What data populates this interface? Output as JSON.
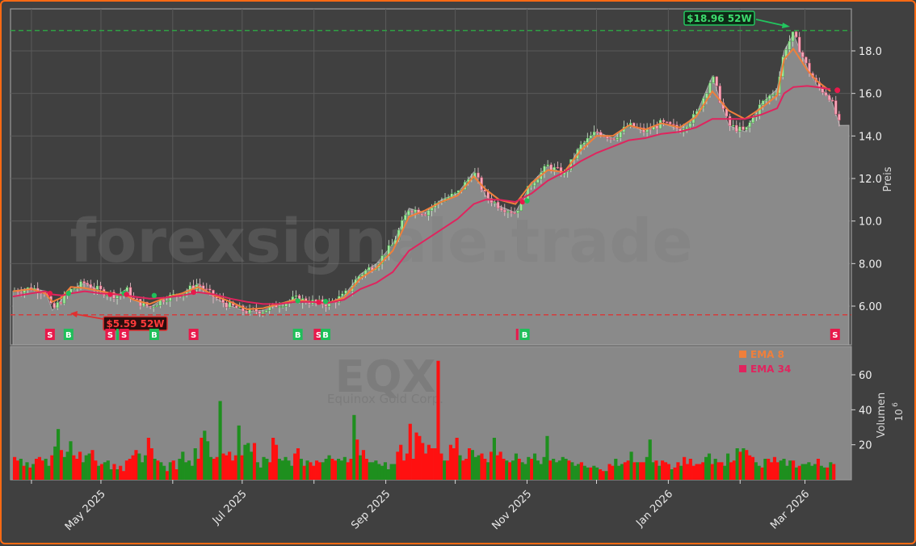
{
  "chart_data": [
    {
      "type": "candlestick",
      "panel": "price",
      "title": "",
      "ylabel": "Preis",
      "ylim": [
        4.8,
        19.9
      ],
      "yticks": [
        6.0,
        8.0,
        10.0,
        12.0,
        14.0,
        16.0,
        18.0
      ],
      "ytick_labels": [
        "6.00",
        "8.00",
        "10.0",
        "12.0",
        "14.0",
        "16.0",
        "18.0"
      ],
      "grid": true,
      "x_start": "2025-03-24",
      "x_end": "2026-03-20",
      "close_approx": [
        [
          "2025-03-24",
          6.7
        ],
        [
          "2025-04-01",
          6.85
        ],
        [
          "2025-04-07",
          6.7
        ],
        [
          "2025-04-10",
          5.8
        ],
        [
          "2025-04-14",
          6.3
        ],
        [
          "2025-04-18",
          6.75
        ],
        [
          "2025-04-24",
          7.1
        ],
        [
          "2025-05-01",
          6.7
        ],
        [
          "2025-05-08",
          6.5
        ],
        [
          "2025-05-12",
          6.8
        ],
        [
          "2025-05-15",
          6.3
        ],
        [
          "2025-05-22",
          5.95
        ],
        [
          "2025-05-29",
          6.4
        ],
        [
          "2025-06-05",
          6.6
        ],
        [
          "2025-06-12",
          7.05
        ],
        [
          "2025-06-19",
          6.4
        ],
        [
          "2025-06-26",
          6.0
        ],
        [
          "2025-07-03",
          5.75
        ],
        [
          "2025-07-10",
          5.8
        ],
        [
          "2025-07-17",
          6.1
        ],
        [
          "2025-07-24",
          6.35
        ],
        [
          "2025-07-31",
          6.2
        ],
        [
          "2025-08-07",
          6.1
        ],
        [
          "2025-08-14",
          6.5
        ],
        [
          "2025-08-21",
          7.5
        ],
        [
          "2025-08-28",
          8.0
        ],
        [
          "2025-09-04",
          8.9
        ],
        [
          "2025-09-11",
          10.6
        ],
        [
          "2025-09-18",
          10.4
        ],
        [
          "2025-09-25",
          11.0
        ],
        [
          "2025-10-02",
          11.3
        ],
        [
          "2025-10-09",
          12.3
        ],
        [
          "2025-10-14",
          11.2
        ],
        [
          "2025-10-20",
          10.7
        ],
        [
          "2025-10-27",
          10.4
        ],
        [
          "2025-11-03",
          11.8
        ],
        [
          "2025-11-10",
          12.6
        ],
        [
          "2025-11-17",
          12.2
        ],
        [
          "2025-11-24",
          13.5
        ],
        [
          "2025-12-01",
          14.2
        ],
        [
          "2025-12-08",
          13.9
        ],
        [
          "2025-12-15",
          14.5
        ],
        [
          "2025-12-22",
          14.2
        ],
        [
          "2025-12-29",
          14.6
        ],
        [
          "2026-01-06",
          14.3
        ],
        [
          "2026-01-13",
          15.0
        ],
        [
          "2026-01-20",
          16.8
        ],
        [
          "2026-01-27",
          14.5
        ],
        [
          "2026-02-03",
          14.2
        ],
        [
          "2026-02-10",
          15.5
        ],
        [
          "2026-02-17",
          16.2
        ],
        [
          "2026-02-20",
          18.0
        ],
        [
          "2026-02-24",
          18.8
        ],
        [
          "2026-03-02",
          17.2
        ],
        [
          "2026-03-06",
          16.4
        ],
        [
          "2026-03-12",
          15.8
        ],
        [
          "2026-03-16",
          14.5
        ]
      ],
      "series": [
        {
          "name": "EMA 8",
          "color": "#f07f3b",
          "values_approx": [
            6.7,
            6.8,
            6.6,
            6.2,
            6.4,
            6.9,
            6.85,
            6.7,
            6.55,
            6.5,
            6.3,
            6.1,
            6.4,
            6.6,
            6.9,
            6.5,
            6.2,
            5.85,
            5.9,
            6.1,
            6.3,
            6.2,
            6.15,
            6.4,
            7.3,
            7.8,
            8.6,
            10.2,
            10.5,
            10.9,
            11.2,
            12.1,
            11.5,
            11.0,
            10.8,
            11.8,
            12.4,
            12.3,
            13.3,
            14.0,
            14.0,
            14.5,
            14.3,
            14.6,
            14.4,
            14.9,
            16.1,
            15.2,
            14.8,
            15.3,
            15.9,
            17.6,
            18.1,
            17.1,
            16.6,
            16.1,
            null
          ]
        },
        {
          "name": "EMA 34",
          "color": "#e0245e",
          "values_approx": [
            6.45,
            6.6,
            6.7,
            6.55,
            6.5,
            6.6,
            6.7,
            6.6,
            6.55,
            6.5,
            6.45,
            6.35,
            6.4,
            6.5,
            6.65,
            6.55,
            6.35,
            6.2,
            6.1,
            6.1,
            6.2,
            6.2,
            6.15,
            6.3,
            6.8,
            7.1,
            7.6,
            8.6,
            9.1,
            9.6,
            10.1,
            10.8,
            11.0,
            11.0,
            10.9,
            11.3,
            11.9,
            12.3,
            12.8,
            13.2,
            13.5,
            13.8,
            13.9,
            14.1,
            14.2,
            14.4,
            14.8,
            14.8,
            14.8,
            15.0,
            15.3,
            16.0,
            16.3,
            16.35,
            16.3,
            16.2,
            null
          ]
        }
      ],
      "annotations": [
        {
          "label": "$18.96 52W",
          "type": "52-week high",
          "value": 18.96,
          "line_color": "#2ea043",
          "box_color": "#22c55e"
        },
        {
          "label": "$5.59 52W",
          "type": "52-week low",
          "value": 5.59,
          "line_color": "#d43c3c",
          "box_color": "#e03030"
        }
      ],
      "signals": [
        {
          "label": "S",
          "date": "2025-04-09"
        },
        {
          "label": "B",
          "date": "2025-04-17"
        },
        {
          "label": "S",
          "date": "2025-05-05"
        },
        {
          "label": "S",
          "date": "2025-05-11"
        },
        {
          "label": "B",
          "date": "2025-05-24"
        },
        {
          "label": "S",
          "date": "2025-06-10"
        },
        {
          "label": "B",
          "date": "2025-07-25"
        },
        {
          "label": "S",
          "date": "2025-08-03"
        },
        {
          "label": "B",
          "date": "2025-08-06"
        },
        {
          "label": "B",
          "date": "2025-10-31"
        },
        {
          "label": "S",
          "date": "2026-03-14"
        }
      ],
      "legend": [
        {
          "name": "EMA 8",
          "color": "#f07f3b"
        },
        {
          "name": "EMA 34",
          "color": "#e0245e"
        }
      ],
      "watermark": "forexsignale.trade"
    },
    {
      "type": "bar",
      "panel": "volume",
      "ylabel": "Volumen",
      "yunit": "10^6",
      "ylim": [
        0,
        76
      ],
      "yticks": [
        20,
        40,
        60
      ],
      "up_color": "#1e8f1e",
      "down_color": "#ff1010",
      "values_approx": [
        13,
        11,
        12,
        8,
        10,
        7,
        9,
        12,
        13,
        11,
        12,
        8,
        14,
        19,
        29,
        17,
        13,
        16,
        22,
        14,
        12,
        16,
        10,
        14,
        15,
        17,
        11,
        8,
        9,
        10,
        11,
        6,
        9,
        6,
        8,
        5,
        11,
        12,
        14,
        17,
        15,
        10,
        14,
        24,
        18,
        12,
        11,
        10,
        8,
        5,
        10,
        11,
        6,
        12,
        16,
        10,
        11,
        8,
        18,
        12,
        24,
        28,
        22,
        13,
        12,
        13,
        45,
        15,
        14,
        16,
        11,
        14,
        31,
        14,
        20,
        21,
        16,
        21,
        10,
        7,
        13,
        12,
        10,
        24,
        20,
        12,
        11,
        13,
        11,
        8,
        15,
        18,
        12,
        8,
        11,
        10,
        8,
        11,
        10,
        10,
        12,
        14,
        12,
        11,
        12,
        11,
        13,
        10,
        12,
        37,
        23,
        14,
        17,
        12,
        10,
        10,
        11,
        9,
        8,
        10,
        6,
        9,
        9,
        16,
        20,
        11,
        15,
        32,
        12,
        27,
        25,
        21,
        15,
        20,
        18,
        18,
        68,
        15,
        11,
        11,
        20,
        18,
        24,
        14,
        11,
        12,
        18,
        17,
        13,
        14,
        15,
        12,
        10,
        16,
        24,
        14,
        16,
        12,
        11,
        10,
        11,
        15,
        12,
        10,
        9,
        13,
        12,
        15,
        11,
        9,
        13,
        25,
        11,
        12,
        10,
        11,
        13,
        12,
        11,
        10,
        8,
        9,
        10,
        8,
        7,
        7,
        8,
        7,
        6,
        5,
        5,
        9,
        8,
        12,
        8,
        9,
        10,
        11,
        16,
        10,
        10,
        10,
        10,
        13,
        23,
        10,
        11,
        8,
        11,
        10,
        9,
        6,
        7,
        10,
        8,
        13,
        9,
        12,
        8,
        9,
        9,
        10,
        13,
        15,
        9,
        12,
        10,
        10,
        8,
        15,
        10,
        11,
        18,
        16,
        18,
        17,
        14,
        13,
        10,
        8,
        7,
        12,
        12,
        10,
        13,
        10,
        11,
        12,
        8,
        11,
        11,
        7,
        8,
        9,
        9,
        10,
        8,
        9,
        12,
        8,
        7,
        7,
        10,
        9
      ]
    }
  ],
  "x_axis": {
    "labels": [
      "May 2025",
      "Jul 2025",
      "Sep 2025",
      "Nov 2025",
      "Jan 2026",
      "Mar 2026"
    ],
    "minor_ticks": [
      "Apr 2025",
      "Jun 2025",
      "Aug 2025",
      "Oct 2025",
      "Dec 2025",
      "Feb 2026"
    ]
  },
  "axes_labels": {
    "price": "Preis",
    "volume": "Volumen",
    "volume_unit": "10",
    "volume_exp": "6"
  },
  "legend": {
    "ema8": "EMA 8",
    "ema34": "EMA 34"
  },
  "watermark": {
    "main": "forexsignale.trade",
    "ticker": "EQX",
    "company": "Equinox Gold Corp."
  },
  "colors": {
    "frame": "#ff6a13",
    "bg": "#404040",
    "plot_bg": "#404040",
    "fill": "#8a8a8a",
    "ema8": "#f07f3b",
    "ema34": "#e0245e",
    "buy": "#1fbf5a",
    "sell": "#e8194b",
    "high_line": "#2ea043",
    "low_line": "#d43c3c"
  }
}
